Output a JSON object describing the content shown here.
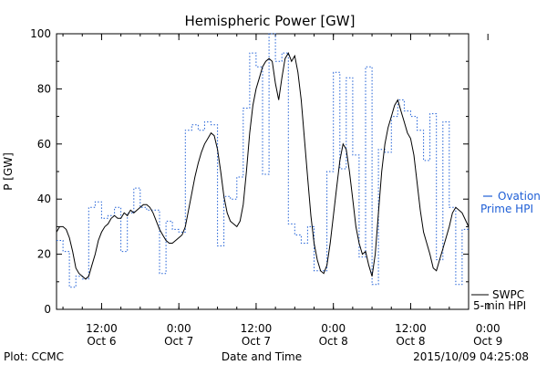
{
  "chart_data": {
    "type": "line",
    "title": "Hemispheric Power [GW]",
    "xlabel": "Date and Time",
    "ylabel": "P [GW]",
    "ylim": [
      0,
      100
    ],
    "xlim_hours": [
      0,
      64
    ],
    "y_ticks": [
      "0",
      "20",
      "40",
      "60",
      "80",
      "100"
    ],
    "x_ticks": [
      {
        "t": 7,
        "time": "12:00",
        "date": "Oct 6"
      },
      {
        "t": 19,
        "time": "0:00",
        "date": "Oct 7"
      },
      {
        "t": 31,
        "time": "12:00",
        "date": "Oct 7"
      },
      {
        "t": 43,
        "time": "0:00",
        "date": "Oct 8"
      },
      {
        "t": 55,
        "time": "12:00",
        "date": "Oct 8"
      },
      {
        "t": 67,
        "time": "0:00",
        "date": "Oct 9"
      }
    ],
    "series": [
      {
        "name": "SWPC 5-min HPI",
        "style": "solid",
        "color": "#000000",
        "points": [
          [
            0,
            28
          ],
          [
            0.5,
            30
          ],
          [
            1,
            30
          ],
          [
            1.5,
            29
          ],
          [
            2,
            26
          ],
          [
            2.5,
            21
          ],
          [
            3,
            15
          ],
          [
            3.5,
            13
          ],
          [
            4,
            12
          ],
          [
            4.5,
            11
          ],
          [
            5,
            12
          ],
          [
            5.5,
            16
          ],
          [
            6,
            20
          ],
          [
            6.5,
            25
          ],
          [
            7,
            28
          ],
          [
            7.5,
            30
          ],
          [
            8,
            31
          ],
          [
            8.5,
            33
          ],
          [
            9,
            34
          ],
          [
            9.5,
            33
          ],
          [
            10,
            33
          ],
          [
            10.5,
            35
          ],
          [
            11,
            34
          ],
          [
            11.5,
            36
          ],
          [
            12,
            35
          ],
          [
            12.5,
            36
          ],
          [
            13,
            37
          ],
          [
            13.5,
            38
          ],
          [
            14,
            38
          ],
          [
            14.5,
            37
          ],
          [
            15,
            35
          ],
          [
            15.5,
            32
          ],
          [
            16,
            29
          ],
          [
            16.5,
            27
          ],
          [
            17,
            25
          ],
          [
            17.5,
            24
          ],
          [
            18,
            24
          ],
          [
            18.5,
            25
          ],
          [
            19,
            26
          ],
          [
            19.5,
            27
          ],
          [
            20,
            30
          ],
          [
            20.5,
            36
          ],
          [
            21,
            42
          ],
          [
            21.5,
            48
          ],
          [
            22,
            53
          ],
          [
            22.5,
            57
          ],
          [
            23,
            60
          ],
          [
            23.5,
            62
          ],
          [
            24,
            64
          ],
          [
            24.5,
            63
          ],
          [
            25,
            58
          ],
          [
            25.5,
            50
          ],
          [
            26,
            41
          ],
          [
            26.5,
            35
          ],
          [
            27,
            32
          ],
          [
            27.5,
            31
          ],
          [
            28,
            30
          ],
          [
            28.5,
            32
          ],
          [
            29,
            38
          ],
          [
            29.5,
            50
          ],
          [
            30,
            64
          ],
          [
            30.5,
            74
          ],
          [
            31,
            80
          ],
          [
            31.5,
            84
          ],
          [
            32,
            88
          ],
          [
            32.5,
            90
          ],
          [
            33,
            91
          ],
          [
            33.5,
            90
          ],
          [
            34,
            82
          ],
          [
            34.5,
            76
          ],
          [
            35,
            84
          ],
          [
            35.5,
            91
          ],
          [
            36,
            93
          ],
          [
            36.5,
            90
          ],
          [
            37,
            92
          ],
          [
            37.5,
            86
          ],
          [
            38,
            76
          ],
          [
            38.5,
            62
          ],
          [
            39,
            48
          ],
          [
            39.5,
            34
          ],
          [
            40,
            24
          ],
          [
            40.5,
            18
          ],
          [
            41,
            14
          ],
          [
            41.5,
            13
          ],
          [
            42,
            16
          ],
          [
            42.5,
            24
          ],
          [
            43,
            34
          ],
          [
            43.5,
            44
          ],
          [
            44,
            54
          ],
          [
            44.5,
            60
          ],
          [
            45,
            58
          ],
          [
            45.5,
            50
          ],
          [
            46,
            40
          ],
          [
            46.5,
            30
          ],
          [
            47,
            24
          ],
          [
            47.5,
            20
          ],
          [
            48,
            21
          ],
          [
            48.5,
            16
          ],
          [
            49,
            12
          ],
          [
            49.5,
            20
          ],
          [
            50,
            35
          ],
          [
            50.5,
            50
          ],
          [
            51,
            60
          ],
          [
            51.5,
            66
          ],
          [
            52,
            70
          ],
          [
            52.5,
            74
          ],
          [
            53,
            76
          ],
          [
            53.5,
            72
          ],
          [
            54,
            68
          ],
          [
            54.5,
            64
          ],
          [
            55,
            62
          ],
          [
            55.5,
            56
          ],
          [
            56,
            46
          ],
          [
            56.5,
            36
          ],
          [
            57,
            28
          ],
          [
            57.5,
            24
          ],
          [
            58,
            20
          ],
          [
            58.5,
            15
          ],
          [
            59,
            14
          ],
          [
            59.5,
            18
          ],
          [
            60,
            22
          ],
          [
            60.5,
            26
          ],
          [
            61,
            30
          ],
          [
            61.5,
            35
          ],
          [
            62,
            37
          ],
          [
            62.5,
            36
          ],
          [
            63,
            35
          ],
          [
            64,
            30
          ]
        ]
      },
      {
        "name": "Ovation Prime HPI",
        "style": "dotted-step",
        "color": "#1f5fd6",
        "points": [
          [
            0,
            25
          ],
          [
            1,
            21
          ],
          [
            2,
            8
          ],
          [
            3,
            12
          ],
          [
            4,
            11
          ],
          [
            5,
            37
          ],
          [
            6,
            39
          ],
          [
            7,
            33
          ],
          [
            8,
            34
          ],
          [
            9,
            37
          ],
          [
            10,
            21
          ],
          [
            11,
            35
          ],
          [
            12,
            44
          ],
          [
            13,
            37
          ],
          [
            14,
            36
          ],
          [
            15,
            36
          ],
          [
            16,
            13
          ],
          [
            17,
            32
          ],
          [
            18,
            29
          ],
          [
            19,
            28
          ],
          [
            20,
            65
          ],
          [
            21,
            67
          ],
          [
            22,
            65
          ],
          [
            23,
            68
          ],
          [
            24,
            67
          ],
          [
            25,
            23
          ],
          [
            26,
            41
          ],
          [
            27,
            40
          ],
          [
            28,
            48
          ],
          [
            29,
            73
          ],
          [
            30,
            93
          ],
          [
            31,
            88
          ],
          [
            32,
            49
          ],
          [
            33,
            100
          ],
          [
            34,
            90
          ],
          [
            35,
            93
          ],
          [
            36,
            31
          ],
          [
            37,
            27
          ],
          [
            38,
            24
          ],
          [
            39,
            30
          ],
          [
            40,
            14
          ],
          [
            41,
            14
          ],
          [
            42,
            50
          ],
          [
            43,
            86
          ],
          [
            44,
            51
          ],
          [
            45,
            84
          ],
          [
            46,
            56
          ],
          [
            47,
            19
          ],
          [
            48,
            88
          ],
          [
            49,
            9
          ],
          [
            50,
            58
          ],
          [
            51,
            57
          ],
          [
            52,
            70
          ],
          [
            53,
            76
          ],
          [
            54,
            72
          ],
          [
            55,
            70
          ],
          [
            56,
            65
          ],
          [
            57,
            54
          ],
          [
            58,
            71
          ],
          [
            59,
            18
          ],
          [
            60,
            68
          ],
          [
            61,
            37
          ],
          [
            62,
            9
          ],
          [
            63,
            29
          ]
        ]
      }
    ]
  },
  "legend": {
    "ovation_line1": "Ovation",
    "ovation_line2": "Prime HPI",
    "swpc_line1": "SWPC",
    "swpc_line2": "5-min HPI"
  },
  "footer": {
    "plot_credit": "Plot: CCMC",
    "axis_label": "Date and Time",
    "timestamp": "2015/10/09 04:25:08"
  },
  "colors": {
    "ovation": "#1f5fd6",
    "swpc": "#000000"
  }
}
